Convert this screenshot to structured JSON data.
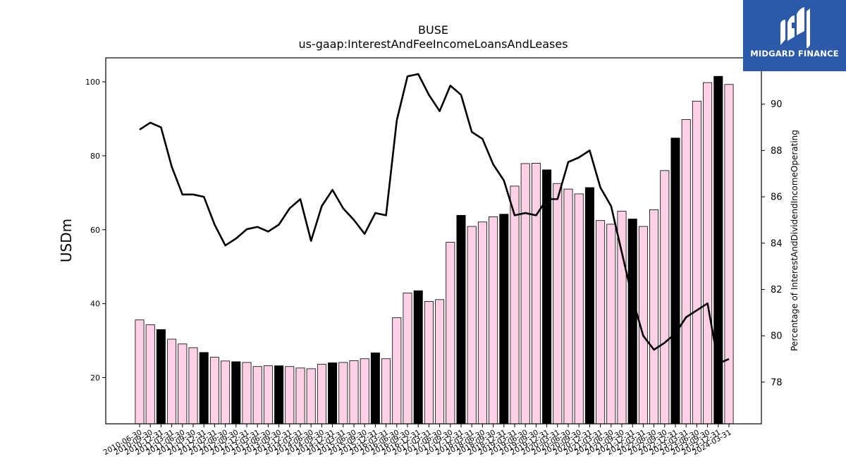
{
  "brand": {
    "name": "MIDGARD FINANCE",
    "bg_color": "#2c5aa8"
  },
  "chart_data": {
    "type": "bar",
    "title": "BUSE",
    "subtitle": "us-gaap:InterestAndFeeIncomeLoansAndLeases",
    "ylabel": "USDm",
    "y2label": "Percentage of InterestAndDividendIncomeOperating",
    "ylim": [
      7.5,
      106.5
    ],
    "y2lim": [
      76.2,
      92.0
    ],
    "yticks": [
      20,
      40,
      60,
      80,
      100
    ],
    "y2ticks": [
      78,
      80,
      82,
      84,
      86,
      88,
      90
    ],
    "bar_color": "#ffd1e6",
    "highlight_color": "#000000",
    "line_color": "#000000",
    "categories": [
      "2010-06-30",
      "2010-09-30",
      "2010-12-31",
      "2011-03-31",
      "2011-06-30",
      "2011-09-30",
      "2011-12-31",
      "2012-03-31",
      "2012-06-30",
      "2012-09-30",
      "2012-12-31",
      "2013-03-31",
      "2013-06-30",
      "2013-09-30",
      "2013-12-31",
      "2014-03-31",
      "2014-06-30",
      "2014-09-30",
      "2014-12-31",
      "2015-03-31",
      "2015-06-30",
      "2015-09-30",
      "2015-12-31",
      "2016-03-31",
      "2016-06-30",
      "2016-09-30",
      "2016-12-31",
      "2017-03-31",
      "2017-06-30",
      "2017-09-30",
      "2017-12-31",
      "2018-03-31",
      "2018-06-30",
      "2018-09-30",
      "2018-12-31",
      "2019-03-31",
      "2019-06-30",
      "2019-09-30",
      "2019-12-31",
      "2020-03-31",
      "2020-06-30",
      "2020-09-30",
      "2020-12-31",
      "2021-03-31",
      "2021-06-30",
      "2021-09-30",
      "2021-12-31",
      "2022-03-31",
      "2022-06-30",
      "2022-09-30",
      "2022-12-31",
      "2023-03-31",
      "2023-06-30",
      "2023-09-30",
      "2023-12-31",
      "2024-03-31"
    ],
    "x_tick_labels": [
      "2010-06-30",
      "2010-09-30",
      "2010-12-31",
      "2011-03-31",
      "2011-06-30",
      "2011-09-30",
      "2011-12-31",
      "2012-03-31",
      "2012-06-30",
      "2012-09-30",
      "2012-12-31",
      "2013-03-31",
      "2013-06-30",
      "2013-09-30",
      "2013-12-31",
      "2014-03-31",
      "2014-06-30",
      "2014-09-30",
      "2014-12-31",
      "2015-03-31",
      "2015-06-30",
      "2015-09-30",
      "2015-12-31",
      "2016-03-31",
      "2016-06-30",
      "2016-09-30",
      "2016-12-31",
      "2017-03-31",
      "2017-06-30",
      "2017-09-30",
      "2017-12-31",
      "2018-03-31",
      "2018-06-30",
      "2018-09-30",
      "2018-12-31",
      "2019-03-31",
      "2019-06-30",
      "2019-09-30",
      "2019-12-31",
      "2020-03-31",
      "2020-06-30",
      "2020-09-30",
      "2020-12-31",
      "2021-03-31",
      "2021-06-30",
      "2021-09-30",
      "2021-12-31",
      "2022-03-31",
      "2022-06-30",
      "2022-09-30",
      "2022-12-31",
      "2023-03-31",
      "2023-06-30",
      "2023-09-30",
      "2023-12-31",
      "2024-03-31"
    ],
    "values": [
      35.6,
      34.3,
      33.0,
      30.4,
      29.1,
      28.1,
      26.8,
      25.5,
      24.5,
      24.3,
      24.1,
      23.0,
      23.2,
      23.2,
      23.0,
      22.6,
      22.4,
      23.6,
      24.0,
      24.1,
      24.6,
      25.1,
      26.7,
      25.1,
      36.2,
      42.9,
      43.5,
      40.6,
      41.1,
      56.6,
      63.9,
      60.9,
      62.1,
      63.5,
      64.2,
      71.8,
      77.9,
      78.0,
      76.2,
      72.5,
      71.0,
      69.7,
      71.4,
      62.5,
      61.5,
      65.0,
      62.9,
      60.9,
      65.4,
      76.0,
      84.8,
      89.8,
      94.8,
      99.8,
      101.5,
      99.3
    ],
    "highlighted": [
      false,
      false,
      true,
      false,
      false,
      false,
      true,
      false,
      false,
      true,
      false,
      false,
      false,
      true,
      false,
      false,
      false,
      false,
      true,
      false,
      false,
      false,
      true,
      false,
      false,
      false,
      true,
      false,
      false,
      false,
      true,
      false,
      false,
      false,
      true,
      false,
      false,
      false,
      true,
      false,
      false,
      false,
      true,
      false,
      false,
      false,
      true,
      false,
      false,
      false,
      true,
      false,
      false,
      false,
      true,
      false
    ],
    "line_values": [
      88.9,
      89.2,
      89.0,
      87.3,
      86.1,
      86.1,
      86.0,
      84.8,
      83.9,
      84.2,
      84.6,
      84.7,
      84.5,
      84.8,
      85.5,
      85.9,
      84.1,
      85.6,
      86.3,
      85.5,
      85.0,
      84.4,
      85.3,
      85.2,
      89.3,
      91.2,
      91.3,
      90.4,
      89.7,
      90.8,
      90.4,
      88.8,
      88.5,
      87.4,
      86.7,
      85.2,
      85.3,
      85.2,
      85.9,
      85.9,
      87.5,
      87.7,
      88.0,
      86.4,
      85.6,
      83.6,
      81.6,
      80.0,
      79.4,
      79.7,
      80.1,
      80.8,
      81.1,
      81.4,
      78.8,
      79.0
    ]
  }
}
